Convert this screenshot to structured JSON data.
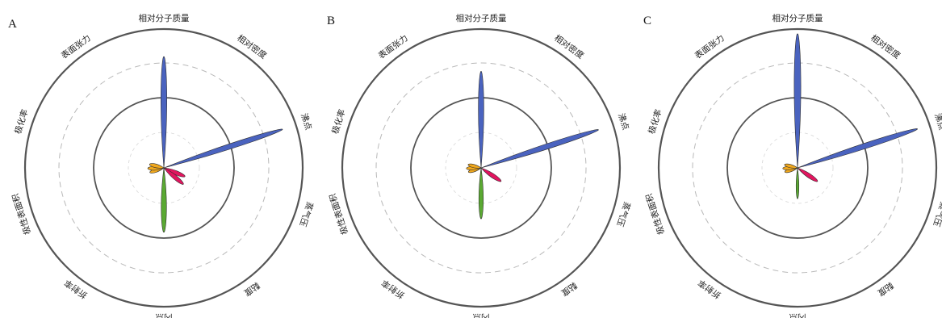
{
  "chart_data": [
    {
      "type": "radar-petal",
      "panel": "A",
      "axes": [
        "相对分子质量",
        "相对密度",
        "沸点",
        "蒸气压",
        "黏度",
        "闪点",
        "折射率",
        "极性表面积",
        "极化率",
        "表面张力"
      ],
      "petals": [
        {
          "angle": 0,
          "value": 0.83,
          "width": 0.052,
          "color": "#4a63bf"
        },
        {
          "angle": 72,
          "value": 0.93,
          "width": 0.041,
          "color": "#4a63bf"
        },
        {
          "angle": 112,
          "value": 0.17,
          "width": 0.18,
          "color": "#e2155f"
        },
        {
          "angle": 130,
          "value": 0.19,
          "width": 0.16,
          "color": "#e2155f"
        },
        {
          "angle": 180,
          "value": 0.48,
          "width": 0.08,
          "color": "#5aa932"
        },
        {
          "angle": 252,
          "value": 0.11,
          "width": 0.25,
          "color": "#f0a81e"
        },
        {
          "angle": 268,
          "value": 0.12,
          "width": 0.25,
          "color": "#f0a81e"
        },
        {
          "angle": 284,
          "value": 0.11,
          "width": 0.25,
          "color": "#f0a81e"
        }
      ]
    },
    {
      "type": "radar-petal",
      "panel": "B",
      "axes": [
        "相对分子质量",
        "相对密度",
        "沸点",
        "蒸气压",
        "黏度",
        "闪点",
        "折射率",
        "极性表面积",
        "极化率",
        "表面张力"
      ],
      "petals": [
        {
          "angle": 0,
          "value": 0.72,
          "width": 0.055,
          "color": "#4a63bf"
        },
        {
          "angle": 72,
          "value": 0.92,
          "width": 0.042,
          "color": "#4a63bf"
        },
        {
          "angle": 124,
          "value": 0.18,
          "width": 0.17,
          "color": "#e2155f"
        },
        {
          "angle": 180,
          "value": 0.38,
          "width": 0.085,
          "color": "#5aa932"
        },
        {
          "angle": 252,
          "value": 0.1,
          "width": 0.25,
          "color": "#f0a81e"
        },
        {
          "angle": 268,
          "value": 0.11,
          "width": 0.25,
          "color": "#f0a81e"
        },
        {
          "angle": 284,
          "value": 0.1,
          "width": 0.25,
          "color": "#f0a81e"
        }
      ]
    },
    {
      "type": "radar-petal",
      "panel": "C",
      "axes": [
        "相对分子质量",
        "相对密度",
        "沸点",
        "蒸气压",
        "黏度",
        "闪点",
        "折射率",
        "极性表面积",
        "极化率",
        "表面张力"
      ],
      "petals": [
        {
          "angle": 0,
          "value": 1.0,
          "width": 0.048,
          "color": "#4a63bf"
        },
        {
          "angle": 72,
          "value": 0.94,
          "width": 0.042,
          "color": "#4a63bf"
        },
        {
          "angle": 124,
          "value": 0.18,
          "width": 0.17,
          "color": "#e2155f"
        },
        {
          "angle": 180,
          "value": 0.23,
          "width": 0.09,
          "color": "#5aa932"
        },
        {
          "angle": 252,
          "value": 0.1,
          "width": 0.25,
          "color": "#f0a81e"
        },
        {
          "angle": 268,
          "value": 0.11,
          "width": 0.25,
          "color": "#f0a81e"
        },
        {
          "angle": 284,
          "value": 0.1,
          "width": 0.25,
          "color": "#f0a81e"
        }
      ]
    }
  ]
}
